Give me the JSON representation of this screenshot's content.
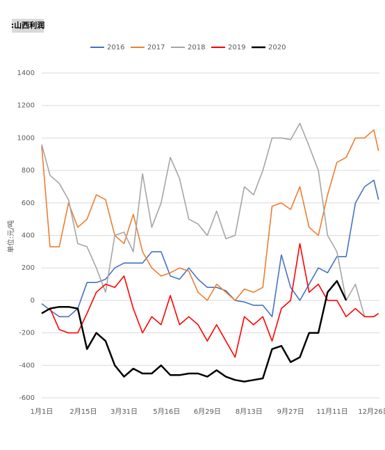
{
  "chart_data": {
    "type": "line",
    "title": ":山西利润",
    "y_label": "单位:元/吨",
    "x": [
      1,
      10,
      20,
      30,
      40,
      50,
      60,
      70,
      80,
      90,
      100,
      110,
      120,
      130,
      140,
      150,
      160,
      170,
      180,
      190,
      200,
      210,
      220,
      230,
      240,
      250,
      260,
      270,
      280,
      290,
      300,
      310,
      320,
      330,
      340,
      350,
      360,
      365
    ],
    "xlim": [
      1,
      366
    ],
    "xticks": [
      {
        "value": 1,
        "label": "1月1日"
      },
      {
        "value": 46,
        "label": "2月15日"
      },
      {
        "value": 90,
        "label": "3月31日"
      },
      {
        "value": 136,
        "label": "5月16日"
      },
      {
        "value": 180,
        "label": "6月29日"
      },
      {
        "value": 225,
        "label": "8月13日"
      },
      {
        "value": 270,
        "label": "9月27日"
      },
      {
        "value": 315,
        "label": "11月11日"
      },
      {
        "value": 360,
        "label": "12月26日"
      }
    ],
    "ylim": [
      -600,
      1400
    ],
    "yticks": [
      -600,
      -400,
      -200,
      0,
      200,
      400,
      600,
      800,
      1000,
      1200,
      1400
    ],
    "grid": true,
    "series": [
      {
        "name": "2016",
        "color": "#4472c4",
        "values": [
          -20,
          -60,
          -100,
          -100,
          -50,
          110,
          110,
          130,
          200,
          230,
          230,
          230,
          300,
          300,
          150,
          130,
          200,
          130,
          80,
          80,
          60,
          0,
          -10,
          -30,
          -30,
          -100,
          280,
          80,
          0,
          100,
          200,
          170,
          270,
          270,
          600,
          700,
          740,
          620
        ]
      },
      {
        "name": "2017",
        "color": "#ed7d31",
        "values": [
          950,
          330,
          330,
          600,
          450,
          500,
          650,
          620,
          400,
          350,
          530,
          300,
          200,
          150,
          170,
          200,
          180,
          50,
          0,
          100,
          50,
          0,
          70,
          50,
          80,
          580,
          600,
          560,
          700,
          450,
          400,
          650,
          850,
          880,
          1000,
          1000,
          1050,
          920
        ]
      },
      {
        "name": "2018",
        "color": "#a5a5a5",
        "values": [
          960,
          770,
          720,
          620,
          350,
          330,
          200,
          50,
          400,
          420,
          300,
          780,
          450,
          600,
          880,
          750,
          500,
          470,
          400,
          550,
          380,
          400,
          700,
          650,
          800,
          1000,
          1000,
          990,
          1090,
          950,
          800,
          400,
          300,
          0,
          100,
          -100,
          -100,
          -80
        ]
      },
      {
        "name": "2019",
        "color": "#ff0000",
        "values": [
          -80,
          -50,
          -180,
          -200,
          -200,
          -80,
          50,
          100,
          80,
          150,
          -50,
          -200,
          -100,
          -150,
          30,
          -150,
          -100,
          -150,
          -250,
          -150,
          -250,
          -350,
          -100,
          -150,
          -100,
          -250,
          -50,
          0,
          350,
          50,
          100,
          0,
          0,
          -100,
          -50,
          -100,
          -100,
          -80
        ]
      },
      {
        "name": "2020",
        "color": "#000000",
        "values": [
          -80,
          -50,
          -40,
          -40,
          -50,
          -300,
          -200,
          -250,
          -400,
          -470,
          -420,
          -450,
          -450,
          -400,
          -460,
          -460,
          -450,
          -450,
          -470,
          -430,
          -470,
          -490,
          -500,
          -490,
          -480,
          -300,
          -280,
          -380,
          -350,
          -200,
          -200,
          50,
          120,
          0,
          null,
          null,
          null,
          null
        ]
      }
    ]
  }
}
